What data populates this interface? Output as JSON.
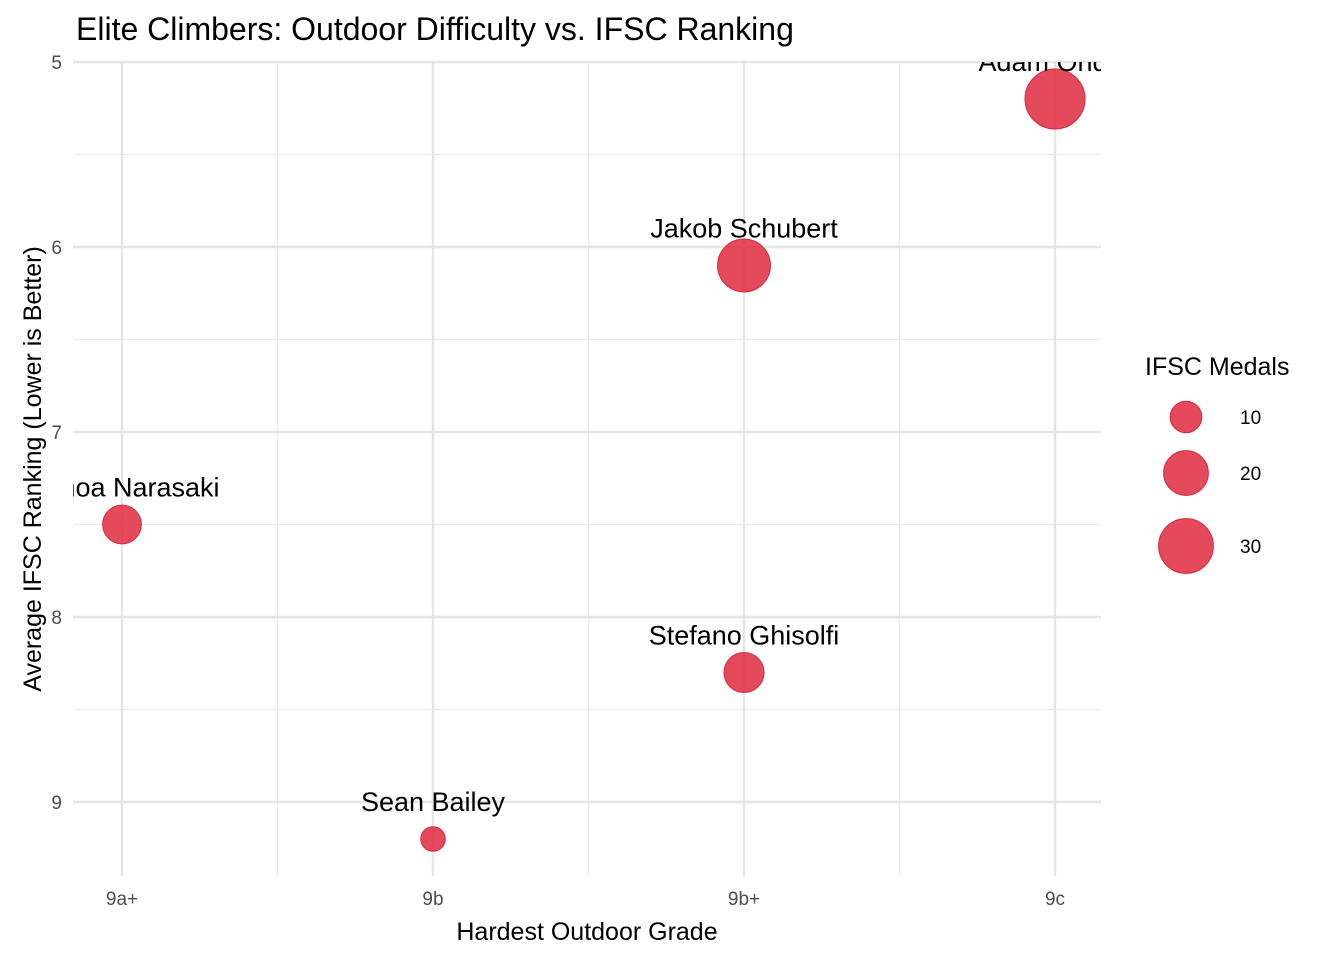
{
  "chart_data": {
    "type": "scatter",
    "title": "Elite Climbers: Outdoor Difficulty vs. IFSC Ranking",
    "xlabel": "Hardest Outdoor Grade",
    "ylabel": "Average IFSC Ranking (Lower is Better)",
    "x_categories": [
      "9a+",
      "9b",
      "9b+",
      "9c"
    ],
    "y_ticks": [
      5,
      6,
      7,
      8,
      9
    ],
    "ylim": [
      5,
      9.4
    ],
    "y_reversed": true,
    "grid": true,
    "legend_position": "right",
    "point_color": "#E03045",
    "points": [
      {
        "label": "Adam Ondra",
        "grade": "9c",
        "ranking": 5.2,
        "medals": 36
      },
      {
        "label": "Jakob Schubert",
        "grade": "9b+",
        "ranking": 6.1,
        "medals": 28
      },
      {
        "label": "Tomoa Narasaki",
        "grade": "9a+",
        "ranking": 7.5,
        "medals": 15
      },
      {
        "label": "Stefano Ghisolfi",
        "grade": "9b+",
        "ranking": 8.3,
        "medals": 16
      },
      {
        "label": "Sean Bailey",
        "grade": "9b",
        "ranking": 9.2,
        "medals": 6
      }
    ],
    "size_legend": {
      "title": "IFSC Medals",
      "values": [
        10,
        20,
        30
      ]
    }
  }
}
